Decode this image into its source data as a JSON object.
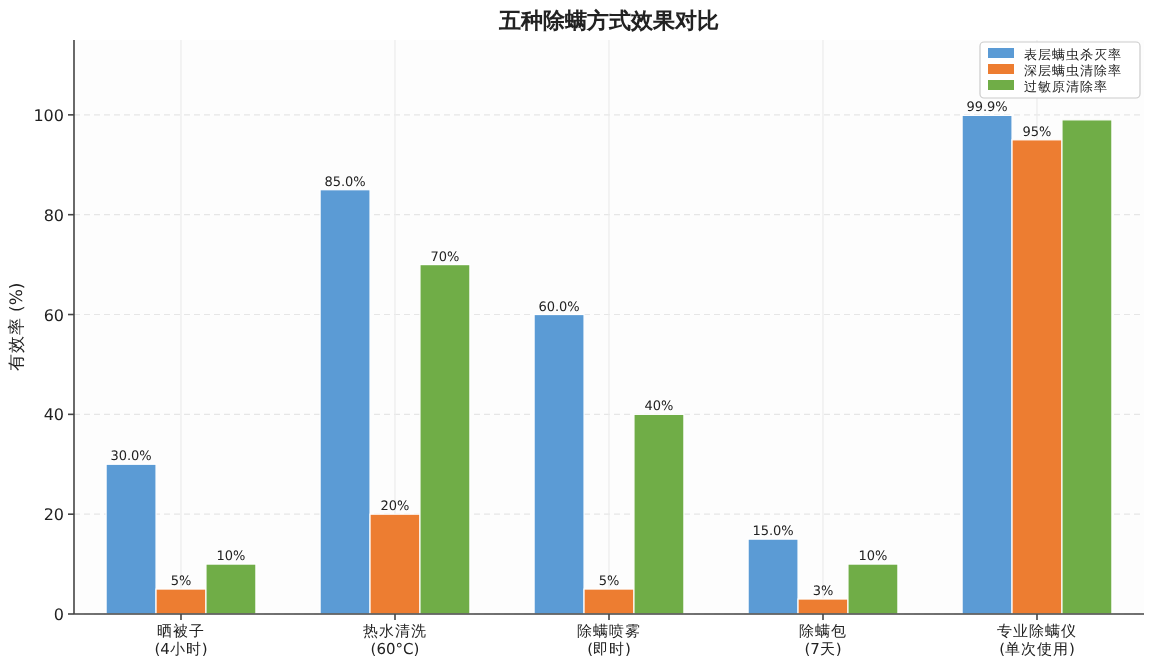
{
  "chart_data": {
    "type": "bar",
    "title": "五种除螨方式效果对比",
    "ylabel": "有效率 (%)",
    "categories": [
      "晒被子\n(4小时)",
      "热水清洗\n(60°C)",
      "除螨喷雾\n(即时)",
      "除螨包\n(7天)",
      "专业除螨仪\n(单次使用)"
    ],
    "series": [
      {
        "name": "表层螨虫杀灭率",
        "color": "#5b9bd5",
        "values": [
          30,
          85,
          60,
          15,
          99.9
        ],
        "value_labels": [
          "30.0%",
          "85.0%",
          "60.0%",
          "15.0%",
          "99.9%"
        ]
      },
      {
        "name": "深层螨虫清除率",
        "color": "#ed7d31",
        "values": [
          5,
          20,
          5,
          3,
          95
        ],
        "value_labels": [
          "5%",
          "20%",
          "5%",
          "3%",
          "95%"
        ]
      },
      {
        "name": "过敏原清除率",
        "color": "#70ad47",
        "values": [
          10,
          70,
          40,
          10,
          99
        ],
        "value_labels": [
          "10%",
          "70%",
          "40%",
          "10%",
          null
        ]
      }
    ],
    "ylim": [
      0,
      115
    ],
    "yticks": [
      0,
      20,
      40,
      60,
      80,
      100
    ],
    "grid": true,
    "legend": "top right"
  }
}
